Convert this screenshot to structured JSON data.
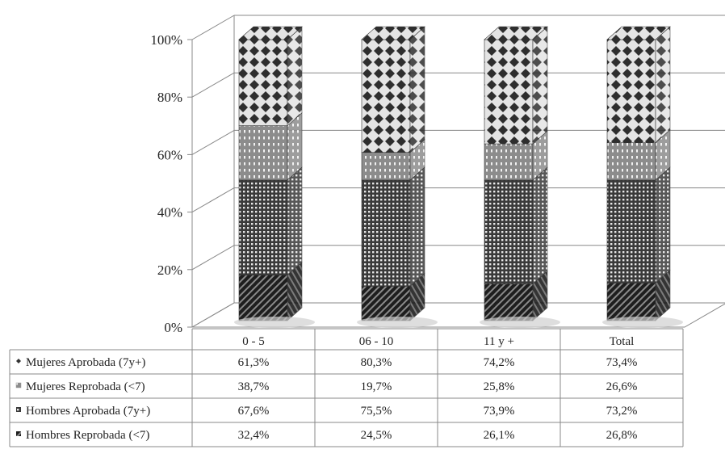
{
  "chart_data": {
    "type": "bar",
    "stacked": "percent",
    "three_d": true,
    "categories": [
      "0 - 5",
      "06 - 10",
      "11 y +",
      "Total"
    ],
    "y_ticks": [
      "0%",
      "20%",
      "40%",
      "60%",
      "80%",
      "100%"
    ],
    "ylim": [
      0,
      100
    ],
    "grid": true,
    "legend": "data-table-left",
    "series": [
      {
        "name": "Hombres Reprobada (<7)",
        "values": [
          32.4,
          24.5,
          26.1,
          26.8
        ],
        "labels": [
          "32,4%",
          "24,5%",
          "26,1%",
          "26,8%"
        ],
        "pattern": "diag-dark"
      },
      {
        "name": "Hombres Aprobada (7y+)",
        "values": [
          67.6,
          75.5,
          73.9,
          73.2
        ],
        "labels": [
          "67,6%",
          "75,5%",
          "73,9%",
          "73,2%"
        ],
        "pattern": "grid-checks"
      },
      {
        "name": "Mujeres Reprobada (<7)",
        "values": [
          38.7,
          19.7,
          25.8,
          26.6
        ],
        "labels": [
          "38,7%",
          "19,7%",
          "25,8%",
          "26,6%"
        ],
        "pattern": "dots-grey"
      },
      {
        "name": "Mujeres Aprobada (7y+)",
        "values": [
          61.3,
          80.3,
          74.2,
          73.4
        ],
        "labels": [
          "61,3%",
          "80,3%",
          "74,2%",
          "73,4%"
        ],
        "pattern": "diamonds"
      }
    ],
    "table_row_order": [
      "Mujeres Aprobada (7y+)",
      "Mujeres Reprobada (<7)",
      "Hombres Aprobada (7y+)",
      "Hombres Reprobada (<7)"
    ]
  }
}
